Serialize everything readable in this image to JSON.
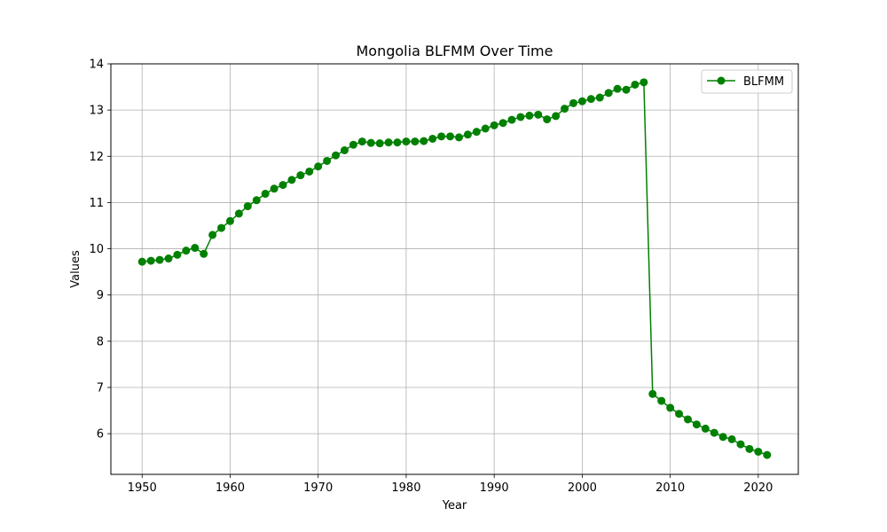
{
  "chart_data": {
    "type": "line",
    "title": "Mongolia BLFMM Over Time",
    "xlabel": "Year",
    "ylabel": "Values",
    "xlim": [
      1946.45,
      2024.55
    ],
    "ylim": [
      5.12,
      14.0
    ],
    "xticks": [
      1950,
      1960,
      1970,
      1980,
      1990,
      2000,
      2010,
      2020
    ],
    "yticks": [
      6,
      7,
      8,
      9,
      10,
      11,
      12,
      13,
      14
    ],
    "grid": true,
    "legend": "top-right",
    "series": [
      {
        "name": "BLFMM",
        "color": "#008000",
        "marker": "circle",
        "x": [
          1950,
          1951,
          1952,
          1953,
          1954,
          1955,
          1956,
          1957,
          1958,
          1959,
          1960,
          1961,
          1962,
          1963,
          1964,
          1965,
          1966,
          1967,
          1968,
          1969,
          1970,
          1971,
          1972,
          1973,
          1974,
          1975,
          1976,
          1977,
          1978,
          1979,
          1980,
          1981,
          1982,
          1983,
          1984,
          1985,
          1986,
          1987,
          1988,
          1989,
          1990,
          1991,
          1992,
          1993,
          1994,
          1995,
          1996,
          1997,
          1998,
          1999,
          2000,
          2001,
          2002,
          2003,
          2004,
          2005,
          2006,
          2007,
          2008,
          2009,
          2010,
          2011,
          2012,
          2013,
          2014,
          2015,
          2016,
          2017,
          2018,
          2019,
          2020,
          2021
        ],
        "values": [
          9.72,
          9.74,
          9.76,
          9.79,
          9.87,
          9.96,
          10.02,
          9.89,
          10.3,
          10.45,
          10.6,
          10.76,
          10.92,
          11.05,
          11.19,
          11.3,
          11.38,
          11.49,
          11.59,
          11.67,
          11.78,
          11.9,
          12.02,
          12.13,
          12.25,
          12.32,
          12.29,
          12.28,
          12.3,
          12.3,
          12.32,
          12.32,
          12.33,
          12.38,
          12.43,
          12.43,
          12.41,
          12.47,
          12.53,
          12.6,
          12.67,
          12.72,
          12.79,
          12.85,
          12.88,
          12.9,
          12.8,
          12.87,
          13.03,
          13.15,
          13.19,
          13.24,
          13.27,
          13.37,
          13.46,
          13.44,
          13.55,
          13.6,
          6.86,
          6.71,
          6.56,
          6.43,
          6.31,
          6.2,
          6.11,
          6.02,
          5.93,
          5.88,
          5.77,
          5.67,
          5.61,
          5.54
        ]
      }
    ]
  }
}
